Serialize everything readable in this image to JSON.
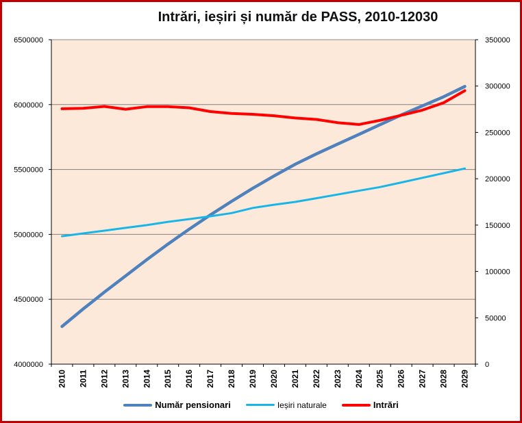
{
  "chart_data": {
    "type": "line",
    "title": "Intrări, ieșiri și număr de PASS, 2010-12030",
    "categories": [
      "2010",
      "2011",
      "2012",
      "2013",
      "2014",
      "2015",
      "2016",
      "2017",
      "2018",
      "2019",
      "2020",
      "2021",
      "2022",
      "2023",
      "2024",
      "2025",
      "2026",
      "2027",
      "2028",
      "2029"
    ],
    "y_left": {
      "ylim": [
        4000000,
        6500000
      ],
      "ticks": [
        "4000000",
        "4500000",
        "5000000",
        "5500000",
        "6000000",
        "6500000"
      ]
    },
    "y_right": {
      "ylim": [
        0,
        350000
      ],
      "ticks": [
        "0",
        "50000",
        "100000",
        "150000",
        "200000",
        "250000",
        "300000",
        "350000"
      ]
    },
    "grid": true,
    "legend_position": "bottom",
    "series": [
      {
        "name": "Număr pensionari",
        "axis": "left",
        "color": "#4f81bd",
        "values": [
          4290000,
          4425000,
          4555000,
          4680000,
          4805000,
          4925000,
          5040000,
          5150000,
          5255000,
          5355000,
          5450000,
          5540000,
          5620000,
          5695000,
          5770000,
          5845000,
          5920000,
          5990000,
          6060000,
          6140000
        ]
      },
      {
        "name": "Ieșiri naturale",
        "axis": "right",
        "color": "#17b5e8",
        "values": [
          138000,
          141000,
          144000,
          147000,
          150000,
          153500,
          156500,
          159500,
          163000,
          168500,
          172000,
          175000,
          179000,
          183000,
          187000,
          191000,
          196000,
          201000,
          206000,
          211000
        ]
      },
      {
        "name": "Intrări",
        "axis": "right",
        "color": "#ff0000",
        "values": [
          275500,
          276000,
          278000,
          275000,
          277800,
          277800,
          276500,
          272500,
          270500,
          269500,
          268000,
          265500,
          264000,
          260500,
          258500,
          263000,
          268500,
          274000,
          282000,
          295000
        ]
      }
    ]
  }
}
